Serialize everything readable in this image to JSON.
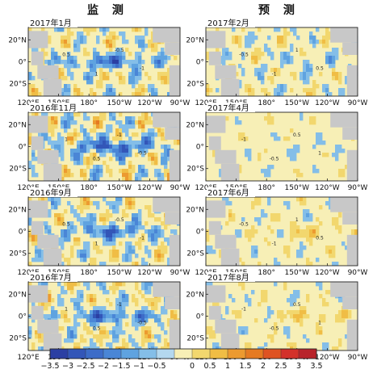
{
  "columns": [
    {
      "title": "监  测"
    },
    {
      "title": "预  测"
    }
  ],
  "chart_data": {
    "type": "heatmap",
    "title": "",
    "xticks": [
      "120°E",
      "150°E",
      "180°",
      "150°W",
      "120°W",
      "90°W"
    ],
    "xticks_alt": [
      "120°E",
      "150°E°",
      "180°",
      "150°W",
      "120°W",
      "90°W"
    ],
    "yticks": [
      "20°N",
      "0°",
      "20°S"
    ],
    "contour_labels": [
      "0.5",
      "-0.5",
      "1",
      "-1"
    ],
    "colorbar": {
      "levels": [
        -3.5,
        -3,
        -2.5,
        -2,
        -1.5,
        -1,
        -0.5,
        0,
        0.5,
        1,
        1.5,
        2,
        2.5,
        3,
        3.5
      ],
      "labels": [
        "−3.5",
        "−3",
        "−2.5",
        "−2",
        "−1.5",
        "−1",
        "−0.5",
        "0",
        "0.5",
        "1",
        "1.5",
        "2",
        "2.5",
        "3",
        "3.5"
      ],
      "colors": [
        "#2b3fa3",
        "#3356b8",
        "#3d6cc8",
        "#4a86d6",
        "#5fa3e0",
        "#84bee8",
        "#b4d8ef",
        "#f7efb6",
        "#f2d76e",
        "#f0bd45",
        "#ec9a30",
        "#e57a22",
        "#df5322",
        "#d3312a",
        "#b8232b"
      ]
    },
    "panels": [
      {
        "label": "2017年1月",
        "column": "监测",
        "alt_xticks": false,
        "amp": 1.0,
        "pattern": 0
      },
      {
        "label": "2017年2月",
        "column": "预测",
        "alt_xticks": false,
        "amp": 0.8,
        "pattern": 1
      },
      {
        "label": "2016年11月",
        "column": "监测",
        "alt_xticks": false,
        "amp": 1.2,
        "pattern": 2
      },
      {
        "label": "2017年4月",
        "column": "预测",
        "alt_xticks": false,
        "amp": 0.5,
        "pattern": 3
      },
      {
        "label": "2016年9月",
        "column": "监测",
        "alt_xticks": false,
        "amp": 1.0,
        "pattern": 4
      },
      {
        "label": "2017年6月",
        "column": "预测",
        "alt_xticks": false,
        "amp": 0.6,
        "pattern": 5
      },
      {
        "label": "2016年7月",
        "column": "监测",
        "alt_xticks": false,
        "amp": 1.0,
        "pattern": 6
      },
      {
        "label": "2017年8月",
        "column": "预测",
        "alt_xticks": true,
        "amp": 0.6,
        "pattern": 7
      }
    ]
  }
}
